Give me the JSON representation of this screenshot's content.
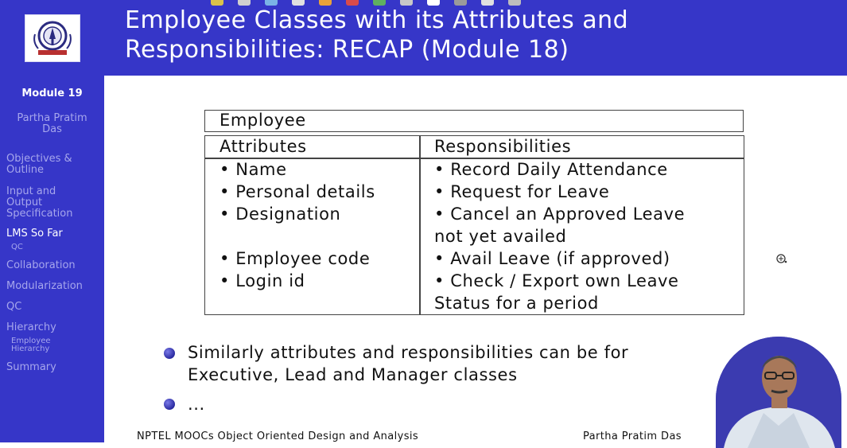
{
  "header": {
    "title_line1": "Employee Classes with its Attributes and",
    "title_line2": "Responsibilities: RECAP (Module 18)"
  },
  "colors": {
    "bar": "#3636c8",
    "sidebar_text": "#a6a6ec",
    "text": "#111111"
  },
  "sidebar": {
    "module": "Module 19",
    "author_line1": "Partha Pratim",
    "author_line2": "Das",
    "items": [
      {
        "l1": "Objectives &",
        "l2": "Outline"
      },
      {
        "l1": "Input and",
        "l2": "Output",
        "l3": "Specification"
      },
      {
        "l1": "LMS So Far"
      },
      {
        "l1": "QC"
      },
      {
        "l1": "Collaboration"
      },
      {
        "l1": "Modularization"
      },
      {
        "l1": "QC"
      },
      {
        "l1": "Hierarchy"
      },
      {
        "l1": "Employee",
        "l2": "Hierarchy"
      },
      {
        "l1": "Summary"
      }
    ]
  },
  "table": {
    "class_name": "Employee",
    "attributes_header": "Attributes",
    "responsibilities_header": "Responsibilities",
    "attributes": [
      "• Name",
      "• Personal details",
      "• Designation",
      "• Employee code",
      "• Login id"
    ],
    "responsibilities": [
      "• Record Daily Attendance",
      "• Request for Leave",
      "• Cancel an Approved Leave",
      "not yet availed",
      "• Avail Leave (if approved)",
      "• Check / Export own Leave",
      "Status for a period"
    ]
  },
  "bullets": {
    "b1_line1": "Similarly attributes and responsibilities can be for",
    "b1_line2": "Executive, Lead and Manager classes",
    "b2": "..."
  },
  "footer": {
    "left": "NPTEL MOOCs Object Oriented Design and Analysis",
    "right": "Partha Pratim Das"
  }
}
